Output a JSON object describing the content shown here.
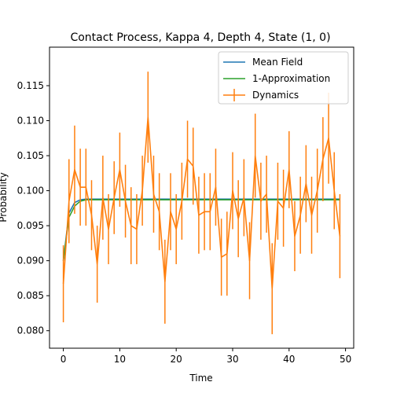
{
  "chart_data": {
    "type": "line",
    "title": "Contact Process, Kappa 4, Depth 4, State (1, 0)",
    "xlabel": "Time",
    "ylabel": "Probability",
    "xlim": [
      -2.45,
      51.45
    ],
    "ylim": [
      0.0775,
      0.1205
    ],
    "xticks": [
      0,
      10,
      20,
      30,
      40,
      50
    ],
    "yticks": [
      0.08,
      0.085,
      0.09,
      0.095,
      0.1,
      0.105,
      0.11,
      0.115
    ],
    "ytick_labels": [
      "0.080",
      "0.085",
      "0.090",
      "0.095",
      "0.100",
      "0.105",
      "0.110",
      "0.115"
    ],
    "legend_position": "top-right",
    "series": [
      {
        "name": "Mean Field",
        "color": "#1f77b4",
        "x": [
          0,
          1,
          2,
          3,
          4,
          5,
          10,
          20,
          30,
          40,
          49
        ],
        "y": [
          0.09,
          0.0968,
          0.0983,
          0.0987,
          0.0988,
          0.0988,
          0.0988,
          0.0988,
          0.0988,
          0.0988,
          0.0988
        ]
      },
      {
        "name": "1-Approximation",
        "color": "#2ca02c",
        "x": [
          0,
          1,
          2,
          3,
          4,
          5,
          10,
          20,
          30,
          40,
          49
        ],
        "y": [
          0.09,
          0.0962,
          0.0978,
          0.0985,
          0.0987,
          0.0987,
          0.0987,
          0.0987,
          0.0987,
          0.0987,
          0.0987
        ]
      },
      {
        "name": "Dynamics",
        "color": "#ff7f0e",
        "errorbars": true,
        "x": [
          0,
          1,
          2,
          3,
          4,
          5,
          6,
          7,
          8,
          9,
          10,
          11,
          12,
          13,
          14,
          15,
          16,
          17,
          18,
          19,
          20,
          21,
          22,
          23,
          24,
          25,
          26,
          27,
          28,
          29,
          30,
          31,
          32,
          33,
          34,
          35,
          36,
          37,
          38,
          39,
          40,
          41,
          42,
          43,
          44,
          45,
          46,
          47,
          48,
          49
        ],
        "y": [
          0.0867,
          0.0985,
          0.103,
          0.1005,
          0.1005,
          0.0965,
          0.0895,
          0.099,
          0.0945,
          0.099,
          0.103,
          0.0985,
          0.095,
          0.0945,
          0.1,
          0.1105,
          0.0995,
          0.097,
          0.087,
          0.097,
          0.0945,
          0.0985,
          0.1045,
          0.1035,
          0.0965,
          0.097,
          0.097,
          0.1005,
          0.0905,
          0.091,
          0.1,
          0.096,
          0.099,
          0.09,
          0.105,
          0.0985,
          0.0995,
          0.086,
          0.0985,
          0.0975,
          0.103,
          0.0935,
          0.0965,
          0.101,
          0.0965,
          0.1,
          0.1045,
          0.1075,
          0.1,
          0.0935
        ],
        "err": [
          0.0055,
          0.006,
          0.0063,
          0.0055,
          0.0055,
          0.005,
          0.0055,
          0.006,
          0.005,
          0.0052,
          0.0053,
          0.0052,
          0.0055,
          0.005,
          0.005,
          0.0065,
          0.0055,
          0.0055,
          0.006,
          0.0055,
          0.005,
          0.0055,
          0.0055,
          0.0055,
          0.0055,
          0.0055,
          0.0055,
          0.0055,
          0.0055,
          0.006,
          0.0055,
          0.0055,
          0.0055,
          0.0055,
          0.006,
          0.0055,
          0.0055,
          0.0065,
          0.0055,
          0.0055,
          0.0055,
          0.005,
          0.0055,
          0.0055,
          0.0055,
          0.006,
          0.006,
          0.0065,
          0.0055,
          0.006
        ]
      }
    ]
  }
}
